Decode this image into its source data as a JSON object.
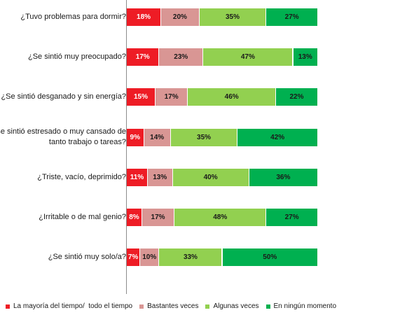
{
  "chart_data": {
    "type": "bar",
    "orientation": "horizontal",
    "stacked": "percent",
    "categories": [
      "¿Tuvo problemas para dormir?",
      "¿Se sintió muy preocupado?",
      "¿Se sintió desganado y sin energía?",
      "¿Se sintió estresado o muy cansado de\ntanto trabajo o tareas?",
      "¿Triste, vacío, deprimido?",
      "¿Irritable o de mal genio?",
      "¿Se sintió muy solo/a?"
    ],
    "series": [
      {
        "name": "La mayoría del tiempo/  todo el tiempo",
        "color": "#ee1c25",
        "text_color": "#ffffff",
        "values": [
          18,
          17,
          15,
          9,
          11,
          8,
          7
        ],
        "labels": [
          "18%",
          "17%",
          "15%",
          "9%",
          "11%",
          "8%",
          "7%"
        ]
      },
      {
        "name": "Bastantes veces",
        "color": "#d99694",
        "text_color": "#1a1a1a",
        "values": [
          20,
          23,
          17,
          14,
          13,
          17,
          10
        ],
        "labels": [
          "20%",
          "23%",
          "17%",
          "14%",
          "13%",
          "17%",
          "10%"
        ]
      },
      {
        "name": "Algunas veces",
        "color": "#92d050",
        "text_color": "#1a1a1a",
        "values": [
          35,
          47,
          46,
          35,
          40,
          48,
          33
        ],
        "labels": [
          "35%",
          "47%",
          "46%",
          "35%",
          "40%",
          "48%",
          "33%"
        ]
      },
      {
        "name": "En ningún momento",
        "color": "#00b050",
        "text_color": "#1a1a1a",
        "values": [
          27,
          13,
          22,
          42,
          36,
          27,
          50
        ],
        "labels": [
          "27%",
          "13%",
          "22%",
          "42%",
          "36%",
          "27%",
          "50%"
        ]
      }
    ],
    "xlim": [
      0,
      100
    ],
    "grid": false,
    "legend_position": "bottom"
  }
}
